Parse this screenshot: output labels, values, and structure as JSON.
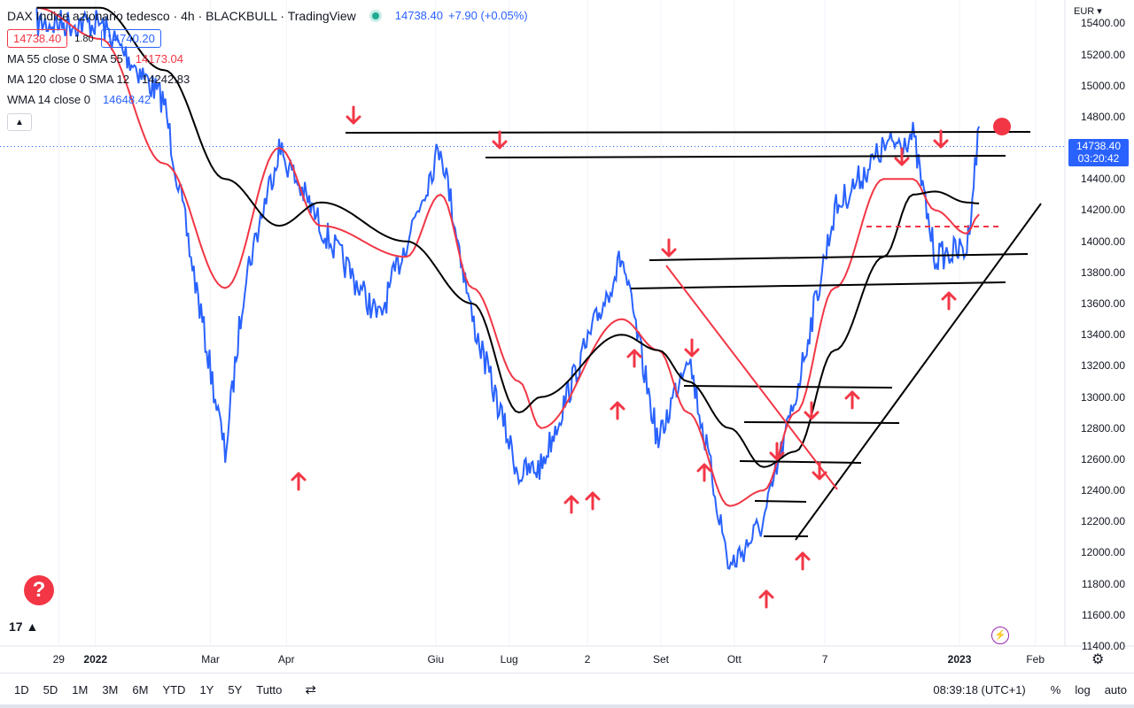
{
  "header": {
    "title": "DAX Indice azionario tedesco · 4h · BLACKBULL · TradingView",
    "last_price": "14738.40",
    "change": "+7.90 (+0.05%)",
    "bid": "14738.40",
    "spread": "1.80",
    "ask": "14740.20"
  },
  "indicators": [
    {
      "name": "MA 55 close 0 SMA 55",
      "value": "14173.04",
      "color": "#f23645"
    },
    {
      "name": "MA 120 close 0 SMA 12",
      "value": "14242.83",
      "color": "#131722"
    },
    {
      "name": "WMA 14 close 0",
      "value": "14648.42",
      "color": "#2962ff"
    }
  ],
  "price_axis": {
    "currency": "EUR",
    "ticks": [
      "15400.00",
      "15200.00",
      "15000.00",
      "14800.00",
      "14600.00",
      "14400.00",
      "14200.00",
      "14000.00",
      "13800.00",
      "13600.00",
      "13400.00",
      "13200.00",
      "13000.00",
      "12800.00",
      "12600.00",
      "12400.00",
      "12200.00",
      "12000.00",
      "11800.00",
      "11600.00",
      "11400.00"
    ],
    "last_tag_price": "14738.40",
    "last_tag_timer": "03:20:42"
  },
  "time_axis": {
    "ticks": [
      {
        "label": "29",
        "bold": false
      },
      {
        "label": "2022",
        "bold": true
      },
      {
        "label": "Mar",
        "bold": false
      },
      {
        "label": "Apr",
        "bold": false
      },
      {
        "label": "Giu",
        "bold": false
      },
      {
        "label": "Lug",
        "bold": false
      },
      {
        "label": "2",
        "bold": false
      },
      {
        "label": "Set",
        "bold": false
      },
      {
        "label": "Ott",
        "bold": false
      },
      {
        "label": "7",
        "bold": false
      },
      {
        "label": "2023",
        "bold": true
      },
      {
        "label": "Feb",
        "bold": false
      }
    ]
  },
  "bottom_bar": {
    "timeframes": [
      "1D",
      "5D",
      "1M",
      "3M",
      "6M",
      "YTD",
      "1Y",
      "5Y",
      "Tutto"
    ],
    "clock": "08:39:18 (UTC+1)",
    "percent": "%",
    "log": "log",
    "auto": "auto"
  },
  "colors": {
    "price_line": "#2962ff",
    "ma_red": "#f23645",
    "ma_black": "#000000",
    "annotation": "#f23645"
  },
  "chart_data": {
    "type": "line",
    "symbol": "DAX",
    "timeframe": "4h",
    "ylim": [
      11400,
      15550
    ],
    "series": [
      {
        "name": "DAX",
        "color": "#2962ff",
        "x": [
          "2021-12-20",
          "2022-01-15",
          "2022-02-10",
          "2022-03-07",
          "2022-03-15",
          "2022-03-29",
          "2022-04-15",
          "2022-05-09",
          "2022-05-20",
          "2022-06-03",
          "2022-06-16",
          "2022-07-05",
          "2022-07-14",
          "2022-07-28",
          "2022-08-16",
          "2022-08-31",
          "2022-09-12",
          "2022-09-29",
          "2022-10-13",
          "2022-10-26",
          "2022-11-11",
          "2022-12-01",
          "2022-12-13",
          "2022-12-22",
          "2023-01-04",
          "2023-01-09"
        ],
        "y": [
          15400,
          15400,
          14900,
          12630,
          13750,
          14600,
          14100,
          13500,
          14000,
          14620,
          13500,
          12500,
          12550,
          13150,
          13900,
          12700,
          13300,
          11900,
          12200,
          13000,
          14200,
          14600,
          14680,
          13900,
          13950,
          14738
        ]
      },
      {
        "name": "MA 55 close 0 SMA 55",
        "color": "#f23645",
        "x": [
          "2021-12-20",
          "2022-01-15",
          "2022-02-10",
          "2022-03-07",
          "2022-03-29",
          "2022-04-15",
          "2022-05-20",
          "2022-06-03",
          "2022-06-16",
          "2022-07-05",
          "2022-07-14",
          "2022-08-16",
          "2022-08-31",
          "2022-09-12",
          "2022-09-29",
          "2022-10-13",
          "2022-10-26",
          "2022-11-11",
          "2022-12-01",
          "2022-12-13",
          "2022-12-22",
          "2023-01-04",
          "2023-01-09"
        ],
        "y": [
          15500,
          15300,
          14500,
          13700,
          14600,
          14100,
          13900,
          14300,
          13700,
          13100,
          12800,
          13500,
          13300,
          12900,
          12300,
          12400,
          12900,
          13700,
          14400,
          14400,
          14200,
          14050,
          14173
        ]
      },
      {
        "name": "MA 120 close 0 SMA 12",
        "color": "#000000",
        "x": [
          "2021-12-20",
          "2022-01-15",
          "2022-02-10",
          "2022-03-07",
          "2022-03-29",
          "2022-04-15",
          "2022-05-20",
          "2022-06-16",
          "2022-07-05",
          "2022-07-14",
          "2022-08-16",
          "2022-08-31",
          "2022-09-12",
          "2022-09-29",
          "2022-10-13",
          "2022-10-26",
          "2022-11-11",
          "2022-12-01",
          "2022-12-13",
          "2022-12-22",
          "2023-01-04",
          "2023-01-09"
        ],
        "y": [
          15500,
          15500,
          15100,
          14400,
          14100,
          14250,
          14000,
          13600,
          12900,
          13000,
          13400,
          13300,
          13100,
          12800,
          12550,
          12650,
          13300,
          13900,
          14300,
          14320,
          14250,
          14243
        ]
      }
    ]
  }
}
